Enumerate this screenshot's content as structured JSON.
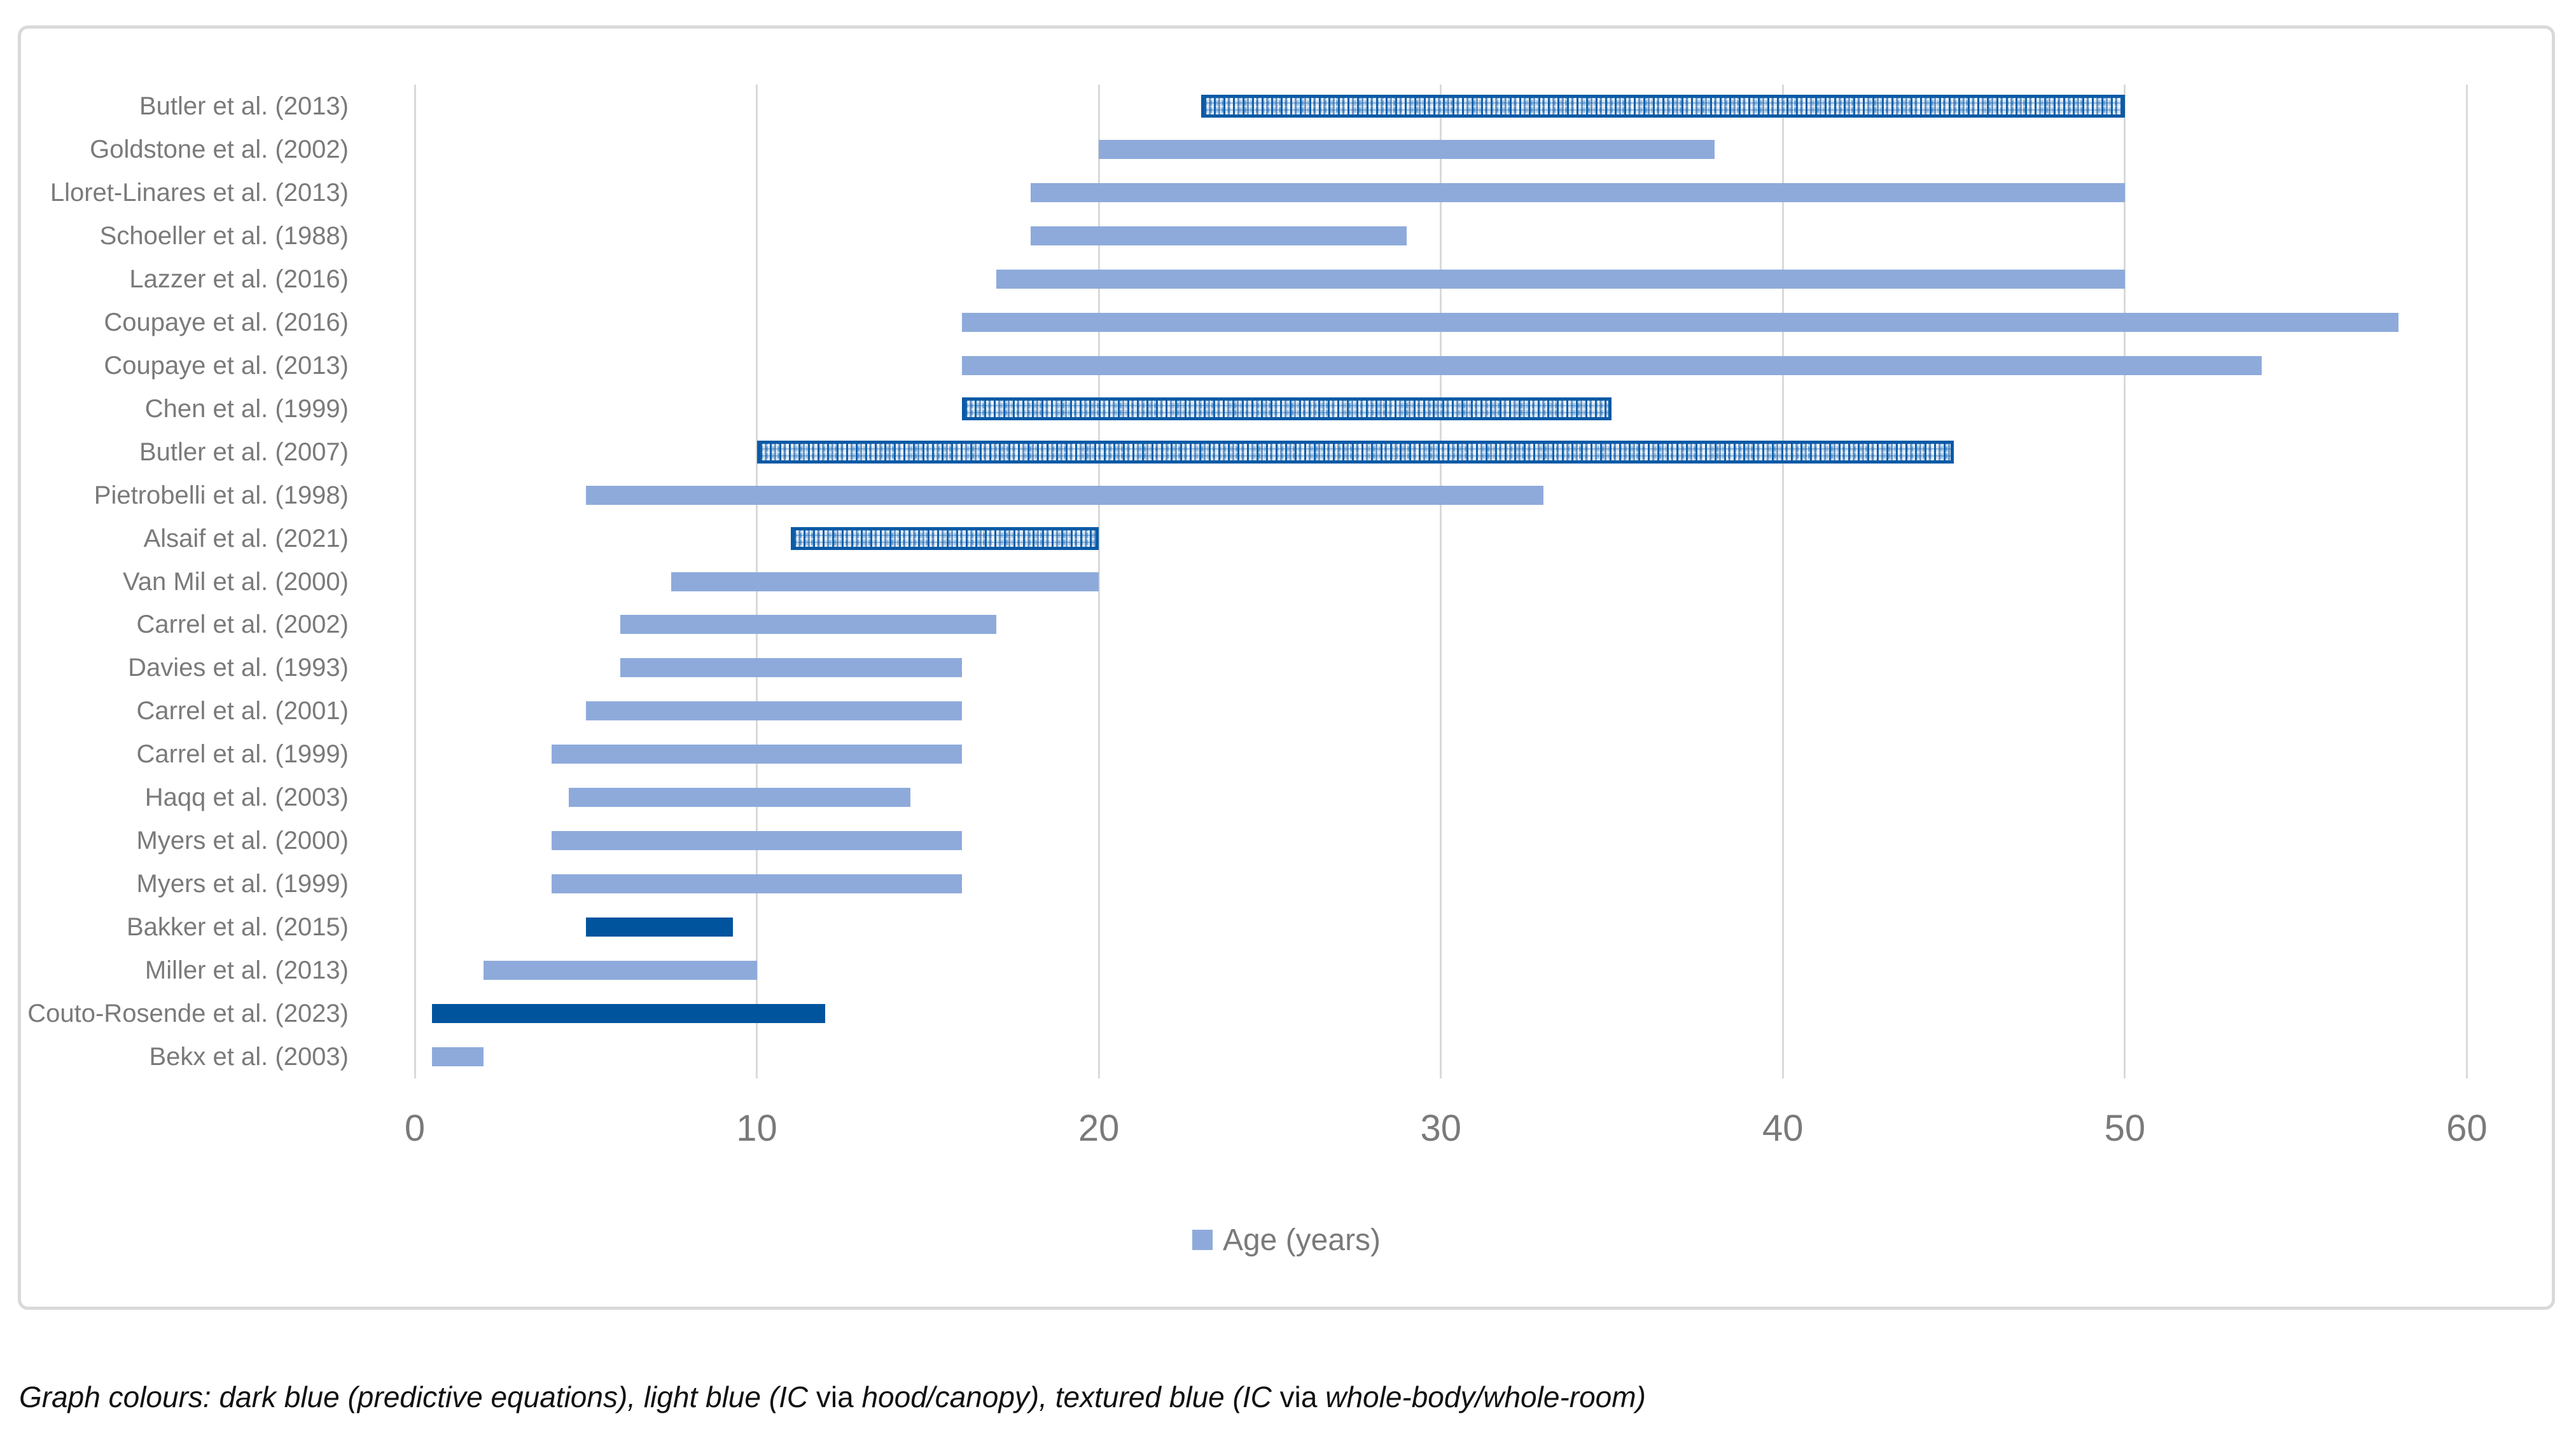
{
  "chart_data": {
    "type": "bar",
    "orientation": "horizontal",
    "title": "",
    "xlabel": "",
    "ylabel": "",
    "x_axis": {
      "min": 0,
      "max": 60,
      "ticks": [
        0,
        10,
        20,
        30,
        40,
        50,
        60
      ],
      "grid": true
    },
    "legend": {
      "label": "Age (years)",
      "swatch_color": "#8EAADB",
      "position": "bottom-center"
    },
    "colors": {
      "light_blue": "#8EAADB",
      "dark_blue": "#00549E",
      "texture_border_blue": "#0B5AA6",
      "gridline": "#D9D9D9",
      "axis_text": "#7a7a7a"
    },
    "style_meaning": {
      "dark": "predictive equations",
      "light": "IC via hood/canopy",
      "textured": "IC via whole-body/whole-room"
    },
    "value_unit": "Age (years)",
    "studies": [
      {
        "label": "Butler et al. (2013)",
        "start": 23,
        "end": 50,
        "style": "textured"
      },
      {
        "label": "Goldstone et al. (2002)",
        "start": 20,
        "end": 38,
        "style": "light"
      },
      {
        "label": "Lloret-Linares et al. (2013)",
        "start": 18,
        "end": 50,
        "style": "light"
      },
      {
        "label": "Schoeller et al. (1988)",
        "start": 18,
        "end": 29,
        "style": "light"
      },
      {
        "label": "Lazzer et al. (2016)",
        "start": 17,
        "end": 50,
        "style": "light"
      },
      {
        "label": "Coupaye et al. (2016)",
        "start": 16,
        "end": 58,
        "style": "light"
      },
      {
        "label": "Coupaye et al. (2013)",
        "start": 16,
        "end": 54,
        "style": "light"
      },
      {
        "label": "Chen et al. (1999)",
        "start": 16,
        "end": 35,
        "style": "textured"
      },
      {
        "label": "Butler et al. (2007)",
        "start": 10,
        "end": 45,
        "style": "textured"
      },
      {
        "label": "Pietrobelli et al. (1998)",
        "start": 5,
        "end": 33,
        "style": "light"
      },
      {
        "label": "Alsaif et al. (2021)",
        "start": 11,
        "end": 20,
        "style": "textured"
      },
      {
        "label": "Van Mil et al. (2000)",
        "start": 7.5,
        "end": 20,
        "style": "light"
      },
      {
        "label": "Carrel et al. (2002)",
        "start": 6,
        "end": 17,
        "style": "light"
      },
      {
        "label": "Davies et al. (1993)",
        "start": 6,
        "end": 16,
        "style": "light"
      },
      {
        "label": "Carrel et al. (2001)",
        "start": 5,
        "end": 16,
        "style": "light"
      },
      {
        "label": "Carrel et al. (1999)",
        "start": 4,
        "end": 16,
        "style": "light"
      },
      {
        "label": "Haqq et al. (2003)",
        "start": 4.5,
        "end": 14.5,
        "style": "light"
      },
      {
        "label": "Myers et al. (2000)",
        "start": 4,
        "end": 16,
        "style": "light"
      },
      {
        "label": "Myers et al. (1999)",
        "start": 4,
        "end": 16,
        "style": "light"
      },
      {
        "label": "Bakker et al. (2015)",
        "start": 5,
        "end": 9.3,
        "style": "dark"
      },
      {
        "label": "Miller et al. (2013)",
        "start": 2,
        "end": 10,
        "style": "light"
      },
      {
        "label": "Couto-Rosende et al. (2023)",
        "start": 0.5,
        "end": 12,
        "style": "dark"
      },
      {
        "label": "Bekx et al. (2003)",
        "start": 0.5,
        "end": 2,
        "style": "light"
      }
    ]
  },
  "caption": {
    "segments": [
      {
        "text": "Graph colours: dark blue (predictive equations), light blue (IC ",
        "italic": true
      },
      {
        "text": "via",
        "italic": false
      },
      {
        "text": " hood/canopy), textured blue (IC ",
        "italic": true
      },
      {
        "text": "via",
        "italic": false
      },
      {
        "text": " whole-body/whole-room)",
        "italic": true
      }
    ]
  }
}
